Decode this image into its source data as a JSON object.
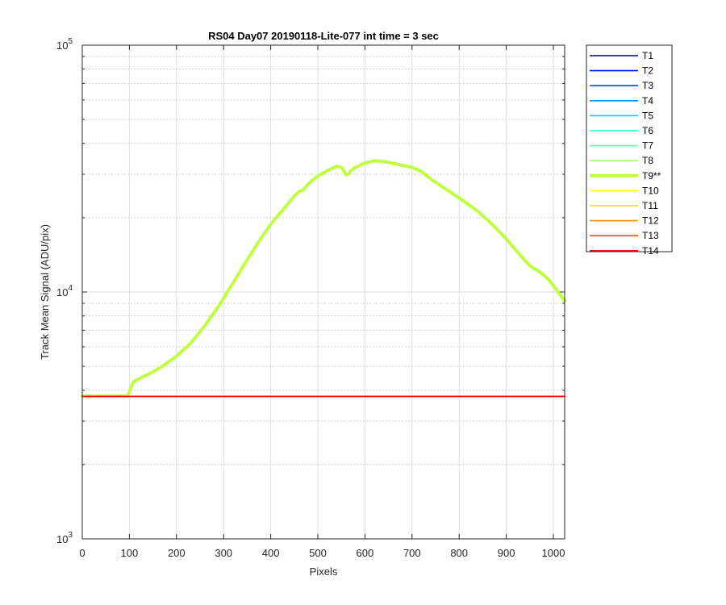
{
  "chart_data": {
    "type": "line",
    "title": "RS04 Day07 20190118-Lite-077 int time = 3 sec",
    "xlabel": "Pixels",
    "ylabel": "Track Mean Signal (ADU/pix)",
    "xlim": [
      0,
      1024
    ],
    "ylim": [
      1000,
      100000
    ],
    "yscale": "log",
    "grid": true,
    "legend_position": "outside-right-top",
    "xticks": [
      0,
      100,
      200,
      300,
      400,
      500,
      600,
      700,
      800,
      900,
      1000
    ],
    "yticks": [
      {
        "value": 1000,
        "base": "10",
        "exp": "3"
      },
      {
        "value": 10000,
        "base": "10",
        "exp": "4"
      },
      {
        "value": 100000,
        "base": "10",
        "exp": "5"
      }
    ],
    "baseline_signal": 3780,
    "series": [
      {
        "name": "T1",
        "color": "#00008f",
        "highlight": false
      },
      {
        "name": "T2",
        "color": "#0010ff",
        "highlight": false
      },
      {
        "name": "T3",
        "color": "#0050ff",
        "highlight": false
      },
      {
        "name": "T4",
        "color": "#0090ff",
        "highlight": false
      },
      {
        "name": "T5",
        "color": "#00d0ff",
        "highlight": false
      },
      {
        "name": "T6",
        "color": "#20ffdf",
        "highlight": false
      },
      {
        "name": "T7",
        "color": "#60ffa0",
        "highlight": false
      },
      {
        "name": "T8",
        "color": "#9fff60",
        "highlight": false
      },
      {
        "name": "T9**",
        "color": "#bfff40",
        "highlight": true,
        "x": [
          0,
          95,
          100,
          105,
          110,
          120,
          130,
          150,
          170,
          200,
          230,
          260,
          290,
          320,
          350,
          380,
          400,
          430,
          450,
          460,
          470,
          480,
          500,
          520,
          540,
          550,
          555,
          560,
          565,
          570,
          580,
          600,
          620,
          640,
          660,
          680,
          700,
          720,
          740,
          760,
          780,
          800,
          820,
          840,
          860,
          880,
          900,
          920,
          940,
          950,
          960,
          970,
          980,
          990,
          1000,
          1010,
          1020,
          1024
        ],
        "y": [
          3780,
          3790,
          3900,
          4200,
          4350,
          4450,
          4550,
          4750,
          5000,
          5500,
          6200,
          7300,
          8800,
          10900,
          13500,
          16600,
          18800,
          22000,
          24500,
          25500,
          26000,
          27500,
          29500,
          31000,
          32300,
          32000,
          31000,
          29800,
          30100,
          31000,
          32000,
          33300,
          34000,
          33800,
          33200,
          32600,
          32000,
          30800,
          28700,
          27000,
          25500,
          24000,
          22600,
          21200,
          19600,
          18000,
          16400,
          14800,
          13400,
          12800,
          12400,
          12100,
          11700,
          11200,
          10600,
          10000,
          9400,
          9200
        ]
      },
      {
        "name": "T10",
        "color": "#ffff00",
        "highlight": false
      },
      {
        "name": "T11",
        "color": "#ffcf00",
        "highlight": false
      },
      {
        "name": "T12",
        "color": "#ff8f00",
        "highlight": false
      },
      {
        "name": "T13",
        "color": "#ff4f00",
        "highlight": false
      },
      {
        "name": "T14",
        "color": "#ef1000",
        "highlight": false
      }
    ]
  }
}
